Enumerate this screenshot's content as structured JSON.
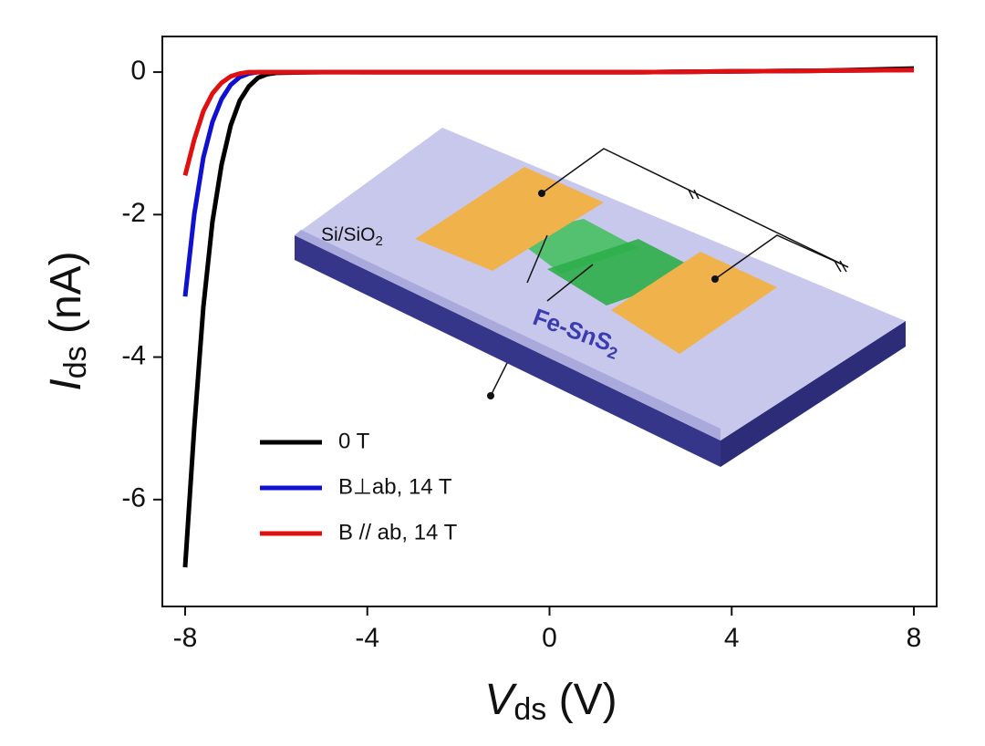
{
  "chart_data": {
    "type": "line",
    "xlabel": [
      "V",
      "ds",
      " (V)"
    ],
    "ylabel": [
      "I",
      "ds",
      " (nA)"
    ],
    "x": [
      -8,
      -7.8,
      -7.6,
      -7.4,
      -7.2,
      -7,
      -6.8,
      -6.6,
      -6.4,
      -6.2,
      -6,
      -5,
      -4,
      -2,
      0,
      2,
      4,
      6,
      8
    ],
    "series": [
      {
        "name": "0 T",
        "color": "#000000",
        "values": [
          -6.95,
          -5.0,
          -3.3,
          -2.1,
          -1.3,
          -0.75,
          -0.4,
          -0.2,
          -0.08,
          -0.03,
          -0.01,
          0,
          0,
          0,
          0,
          0,
          0.01,
          0.02,
          0.05
        ]
      },
      {
        "name": "B⊥ab, 14 T",
        "color": "#1010d0",
        "values": [
          -3.15,
          -2.0,
          -1.2,
          -0.7,
          -0.38,
          -0.18,
          -0.07,
          -0.02,
          0,
          0,
          0,
          0,
          0,
          0,
          0,
          0,
          0.01,
          0.02,
          0.03
        ]
      },
      {
        "name": "B // ab, 14 T",
        "color": "#e01010",
        "values": [
          -1.45,
          -0.95,
          -0.55,
          -0.3,
          -0.15,
          -0.06,
          -0.02,
          0,
          0,
          0,
          0,
          0,
          0,
          0,
          0,
          0,
          0.01,
          0.02,
          0.03
        ]
      }
    ],
    "xlim": [
      -8.5,
      8.5
    ],
    "ylim": [
      -7.5,
      0.5
    ],
    "xticks": [
      -8,
      -4,
      0,
      4,
      8
    ],
    "yticks": [
      -6,
      -4,
      -2,
      0
    ],
    "legend": "lower-left",
    "inset": {
      "substrate_label": [
        "Si/SiO",
        "2"
      ],
      "flake_label": [
        "Fe-SnS",
        "2"
      ]
    }
  }
}
